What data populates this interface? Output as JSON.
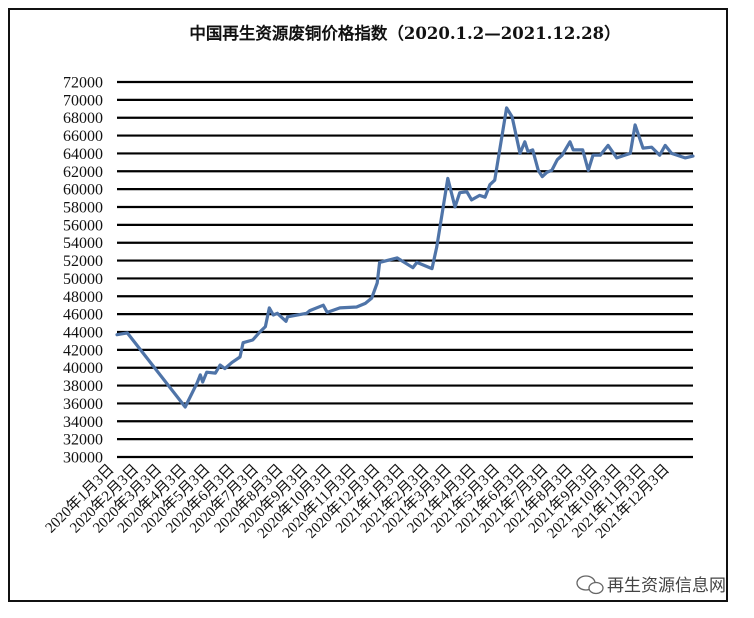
{
  "chart_data": {
    "type": "line",
    "title": "中国再生资源废铜价格指数（2020.1.2—2021.12.28）",
    "xlabel": "",
    "ylabel": "",
    "ylim": [
      30000,
      72000
    ],
    "xlim": [
      "2020-01-02",
      "2021-12-28"
    ],
    "grid": "horizontal",
    "legend": "none",
    "y_ticks": [
      "72000",
      "70000",
      "68000",
      "66000",
      "64000",
      "62000",
      "60000",
      "58000",
      "56000",
      "54000",
      "52000",
      "50000",
      "48000",
      "46000",
      "44000",
      "42000",
      "40000",
      "38000",
      "36000",
      "34000",
      "32000",
      "30000"
    ],
    "x_ticks": [
      {
        "date": "2020-01-03",
        "label": "2020年1月3日"
      },
      {
        "date": "2020-02-03",
        "label": "2020年2月3日"
      },
      {
        "date": "2020-03-03",
        "label": "2020年3月3日"
      },
      {
        "date": "2020-04-03",
        "label": "2020年4月3日"
      },
      {
        "date": "2020-05-03",
        "label": "2020年5月3日"
      },
      {
        "date": "2020-06-03",
        "label": "2020年6月3日"
      },
      {
        "date": "2020-07-03",
        "label": "2020年7月3日"
      },
      {
        "date": "2020-08-03",
        "label": "2020年8月3日"
      },
      {
        "date": "2020-09-03",
        "label": "2020年9月3日"
      },
      {
        "date": "2020-10-03",
        "label": "2020年10月3日"
      },
      {
        "date": "2020-11-03",
        "label": "2020年11月3日"
      },
      {
        "date": "2020-12-03",
        "label": "2020年12月3日"
      },
      {
        "date": "2021-01-03",
        "label": "2021年1月3日"
      },
      {
        "date": "2021-02-03",
        "label": "2021年2月3日"
      },
      {
        "date": "2021-03-03",
        "label": "2021年3月3日"
      },
      {
        "date": "2021-04-03",
        "label": "2021年4月3日"
      },
      {
        "date": "2021-05-03",
        "label": "2021年5月3日"
      },
      {
        "date": "2021-06-03",
        "label": "2021年6月3日"
      },
      {
        "date": "2021-07-03",
        "label": "2021年7月3日"
      },
      {
        "date": "2021-08-03",
        "label": "2021年8月3日"
      },
      {
        "date": "2021-09-03",
        "label": "2021年9月3日"
      },
      {
        "date": "2021-10-03",
        "label": "2021年10月3日"
      },
      {
        "date": "2021-11-03",
        "label": "2021年11月3日"
      },
      {
        "date": "2021-12-03",
        "label": "2021年12月3日"
      }
    ],
    "series": [
      {
        "color": "#4f74a8",
        "points": [
          [
            "2020-01-02",
            43700
          ],
          [
            "2020-01-15",
            43900
          ],
          [
            "2020-03-28",
            35600
          ],
          [
            "2020-04-12",
            38300
          ],
          [
            "2020-04-16",
            39200
          ],
          [
            "2020-04-19",
            38400
          ],
          [
            "2020-04-24",
            39500
          ],
          [
            "2020-05-05",
            39400
          ],
          [
            "2020-05-11",
            40300
          ],
          [
            "2020-05-17",
            39900
          ],
          [
            "2020-05-26",
            40600
          ],
          [
            "2020-06-05",
            41200
          ],
          [
            "2020-06-09",
            42800
          ],
          [
            "2020-06-21",
            43100
          ],
          [
            "2020-06-30",
            44000
          ],
          [
            "2020-07-07",
            44600
          ],
          [
            "2020-07-12",
            46700
          ],
          [
            "2020-07-17",
            45900
          ],
          [
            "2020-07-22",
            46100
          ],
          [
            "2020-08-02",
            45200
          ],
          [
            "2020-08-04",
            45700
          ],
          [
            "2020-08-28",
            46100
          ],
          [
            "2020-09-01",
            46400
          ],
          [
            "2020-09-18",
            47000
          ],
          [
            "2020-09-23",
            46200
          ],
          [
            "2020-10-09",
            46700
          ],
          [
            "2020-10-30",
            46800
          ],
          [
            "2020-11-10",
            47200
          ],
          [
            "2020-11-18",
            47800
          ],
          [
            "2020-11-25",
            49500
          ],
          [
            "2020-11-28",
            51800
          ],
          [
            "2020-12-20",
            52300
          ],
          [
            "2021-01-09",
            51200
          ],
          [
            "2021-01-14",
            51800
          ],
          [
            "2021-02-02",
            51100
          ],
          [
            "2021-02-08",
            53500
          ],
          [
            "2021-02-22",
            61200
          ],
          [
            "2021-03-03",
            58000
          ],
          [
            "2021-03-09",
            59600
          ],
          [
            "2021-03-18",
            59700
          ],
          [
            "2021-03-24",
            58800
          ],
          [
            "2021-04-03",
            59300
          ],
          [
            "2021-04-10",
            59100
          ],
          [
            "2021-04-16",
            60500
          ],
          [
            "2021-04-22",
            61000
          ],
          [
            "2021-05-07",
            69100
          ],
          [
            "2021-05-14",
            68100
          ],
          [
            "2021-05-24",
            64000
          ],
          [
            "2021-05-30",
            65300
          ],
          [
            "2021-06-03",
            64200
          ],
          [
            "2021-06-09",
            64400
          ],
          [
            "2021-06-16",
            62100
          ],
          [
            "2021-06-21",
            61400
          ],
          [
            "2021-06-27",
            61900
          ],
          [
            "2021-07-03",
            62100
          ],
          [
            "2021-07-10",
            63300
          ],
          [
            "2021-07-16",
            63800
          ],
          [
            "2021-07-26",
            65300
          ],
          [
            "2021-07-30",
            64400
          ],
          [
            "2021-08-11",
            64400
          ],
          [
            "2021-08-18",
            62100
          ],
          [
            "2021-08-24",
            63800
          ],
          [
            "2021-09-02",
            63800
          ],
          [
            "2021-09-12",
            64900
          ],
          [
            "2021-09-23",
            63500
          ],
          [
            "2021-10-10",
            64000
          ],
          [
            "2021-10-16",
            67200
          ],
          [
            "2021-10-26",
            64600
          ],
          [
            "2021-11-06",
            64700
          ],
          [
            "2021-11-16",
            63800
          ],
          [
            "2021-11-23",
            64900
          ],
          [
            "2021-12-01",
            64000
          ],
          [
            "2021-12-18",
            63500
          ],
          [
            "2021-12-28",
            63700
          ]
        ]
      }
    ]
  },
  "watermark": {
    "text": "再生资源信息网",
    "icon": "wechat-icon"
  }
}
